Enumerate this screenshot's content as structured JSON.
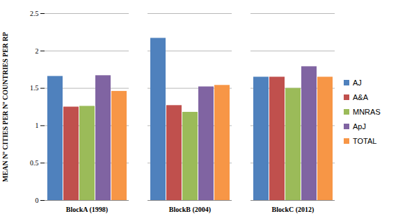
{
  "chart_data": {
    "type": "bar",
    "categories": [
      "BlockA (1998)",
      "BlockB (2004)",
      "BlockC (2012)"
    ],
    "series": [
      {
        "name": "AJ",
        "color": "#4f81bd",
        "values": [
          1.66,
          2.17,
          1.65
        ]
      },
      {
        "name": "A&A",
        "color": "#c0504d",
        "values": [
          1.25,
          1.27,
          1.65
        ]
      },
      {
        "name": "MNRAS",
        "color": "#9bbb59",
        "values": [
          1.26,
          1.18,
          1.5
        ]
      },
      {
        "name": "ApJ",
        "color": "#8064a2",
        "values": [
          1.67,
          1.52,
          1.79
        ]
      },
      {
        "name": "TOTAL",
        "color": "#f79646",
        "values": [
          1.46,
          1.54,
          1.65
        ]
      }
    ],
    "y_label": "MEAN Nº CITIES PER Nº COUNTRIES PER RP",
    "ylim": [
      0,
      2.5
    ],
    "yticks": [
      0,
      0.5,
      1,
      1.5,
      2,
      2.5
    ],
    "grid": true,
    "legend": "right"
  }
}
